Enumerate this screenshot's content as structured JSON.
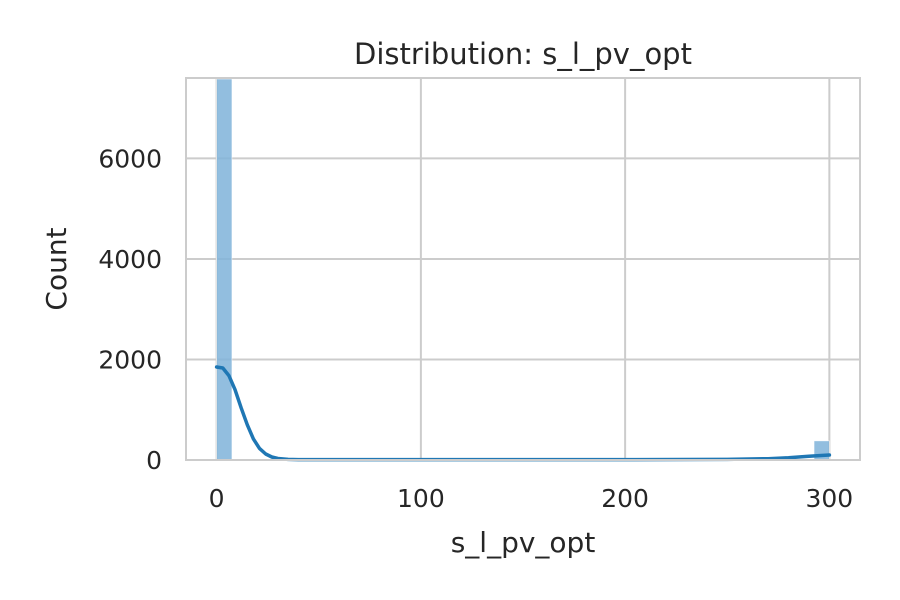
{
  "chart_data": {
    "type": "bar",
    "title": "Distribution: s_l_pv_opt",
    "xlabel": "s_l_pv_opt",
    "ylabel": "Count",
    "xlim": [
      -15,
      315
    ],
    "ylim": [
      0,
      7600
    ],
    "xticks": [
      0,
      100,
      200,
      300
    ],
    "yticks": [
      0,
      2000,
      4000,
      6000
    ],
    "xtick_labels": [
      "0",
      "100",
      "200",
      "300"
    ],
    "ytick_labels": [
      "0",
      "2000",
      "4000",
      "6000"
    ],
    "grid": true,
    "bars": [
      {
        "x0": 0,
        "x1": 7.5,
        "count": 7580
      },
      {
        "x0": 292.5,
        "x1": 300,
        "count": 380
      }
    ],
    "kde": {
      "x": [
        0,
        3,
        6,
        9,
        12,
        15,
        18,
        21,
        24,
        27,
        30,
        35,
        40,
        60,
        100,
        150,
        200,
        250,
        270,
        280,
        290,
        300
      ],
      "y": [
        1850,
        1830,
        1680,
        1400,
        1040,
        700,
        420,
        230,
        120,
        60,
        30,
        12,
        8,
        8,
        8,
        8,
        8,
        12,
        25,
        45,
        75,
        100
      ]
    },
    "colors": {
      "bar": "#7fb3d9",
      "kde": "#1f77b4",
      "grid": "#cccccc",
      "frame": "#cccccc"
    }
  }
}
